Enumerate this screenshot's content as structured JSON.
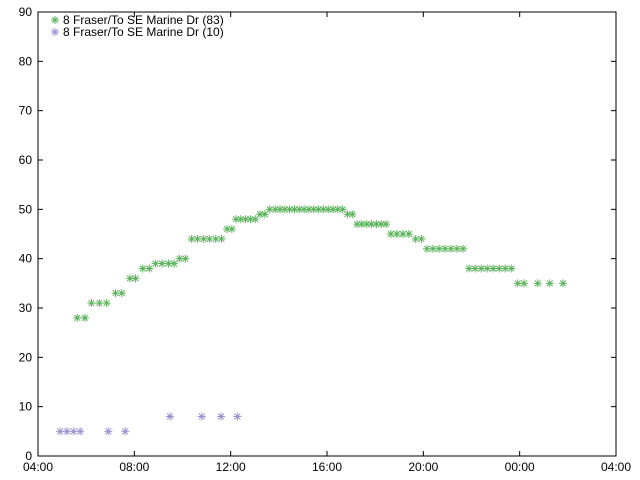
{
  "chart_data": {
    "type": "scatter",
    "title": "",
    "xlabel": "",
    "ylabel": "",
    "x_unit": "hours",
    "xlim": [
      4,
      28
    ],
    "ylim": [
      0,
      90
    ],
    "grid": false,
    "legend_position": "top-left",
    "x_ticks": [
      {
        "value": 4,
        "label": "04:00"
      },
      {
        "value": 8,
        "label": "08:00"
      },
      {
        "value": 12,
        "label": "12:00"
      },
      {
        "value": 16,
        "label": "16:00"
      },
      {
        "value": 20,
        "label": "20:00"
      },
      {
        "value": 24,
        "label": "00:00"
      },
      {
        "value": 28,
        "label": "04:00"
      }
    ],
    "y_ticks": [
      {
        "value": 0,
        "label": "0"
      },
      {
        "value": 10,
        "label": "10"
      },
      {
        "value": 20,
        "label": "20"
      },
      {
        "value": 30,
        "label": "30"
      },
      {
        "value": 40,
        "label": "40"
      },
      {
        "value": 50,
        "label": "50"
      },
      {
        "value": 60,
        "label": "60"
      },
      {
        "value": 70,
        "label": "70"
      },
      {
        "value": 80,
        "label": "80"
      },
      {
        "value": 90,
        "label": "90"
      }
    ],
    "series": [
      {
        "name": "8 Fraser/To SE Marine Dr (83)",
        "color": "#5bb35b",
        "marker": "asterisk",
        "points": [
          [
            5.63,
            28
          ],
          [
            5.95,
            28
          ],
          [
            6.22,
            31
          ],
          [
            6.55,
            31
          ],
          [
            6.85,
            31
          ],
          [
            7.22,
            33
          ],
          [
            7.48,
            33
          ],
          [
            7.82,
            36
          ],
          [
            8.05,
            36
          ],
          [
            8.35,
            38
          ],
          [
            8.62,
            38
          ],
          [
            8.88,
            39
          ],
          [
            9.15,
            39
          ],
          [
            9.42,
            39
          ],
          [
            9.65,
            39
          ],
          [
            9.88,
            40
          ],
          [
            10.12,
            40
          ],
          [
            10.38,
            44
          ],
          [
            10.62,
            44
          ],
          [
            10.88,
            44
          ],
          [
            11.12,
            44
          ],
          [
            11.38,
            44
          ],
          [
            11.62,
            44
          ],
          [
            11.85,
            46
          ],
          [
            12.05,
            46
          ],
          [
            12.22,
            48
          ],
          [
            12.42,
            48
          ],
          [
            12.62,
            48
          ],
          [
            12.82,
            48
          ],
          [
            13.02,
            48
          ],
          [
            13.22,
            49
          ],
          [
            13.42,
            49
          ],
          [
            13.62,
            50
          ],
          [
            13.85,
            50
          ],
          [
            14.05,
            50
          ],
          [
            14.25,
            50
          ],
          [
            14.45,
            50
          ],
          [
            14.65,
            50
          ],
          [
            14.85,
            50
          ],
          [
            15.05,
            50
          ],
          [
            15.25,
            50
          ],
          [
            15.45,
            50
          ],
          [
            15.65,
            50
          ],
          [
            15.85,
            50
          ],
          [
            16.05,
            50
          ],
          [
            16.25,
            50
          ],
          [
            16.45,
            50
          ],
          [
            16.65,
            50
          ],
          [
            16.85,
            49
          ],
          [
            17.05,
            49
          ],
          [
            17.25,
            47
          ],
          [
            17.45,
            47
          ],
          [
            17.65,
            47
          ],
          [
            17.85,
            47
          ],
          [
            18.05,
            47
          ],
          [
            18.25,
            47
          ],
          [
            18.45,
            47
          ],
          [
            18.65,
            45
          ],
          [
            18.9,
            45
          ],
          [
            19.15,
            45
          ],
          [
            19.4,
            45
          ],
          [
            19.68,
            44
          ],
          [
            19.92,
            44
          ],
          [
            20.15,
            42
          ],
          [
            20.4,
            42
          ],
          [
            20.65,
            42
          ],
          [
            20.9,
            42
          ],
          [
            21.15,
            42
          ],
          [
            21.4,
            42
          ],
          [
            21.65,
            42
          ],
          [
            21.9,
            38
          ],
          [
            22.15,
            38
          ],
          [
            22.4,
            38
          ],
          [
            22.65,
            38
          ],
          [
            22.9,
            38
          ],
          [
            23.15,
            38
          ],
          [
            23.4,
            38
          ],
          [
            23.65,
            38
          ],
          [
            23.92,
            35
          ],
          [
            24.18,
            35
          ],
          [
            24.75,
            35
          ],
          [
            25.25,
            35
          ],
          [
            25.8,
            35
          ]
        ]
      },
      {
        "name": "8 Fraser/To SE Marine Dr (10)",
        "color": "#9b8fd1",
        "marker": "asterisk",
        "points": [
          [
            4.92,
            5
          ],
          [
            5.2,
            5
          ],
          [
            5.48,
            5
          ],
          [
            5.75,
            5
          ],
          [
            6.92,
            5
          ],
          [
            7.62,
            5
          ],
          [
            9.48,
            8
          ],
          [
            10.8,
            8
          ],
          [
            11.6,
            8
          ],
          [
            12.28,
            8
          ]
        ]
      }
    ]
  }
}
